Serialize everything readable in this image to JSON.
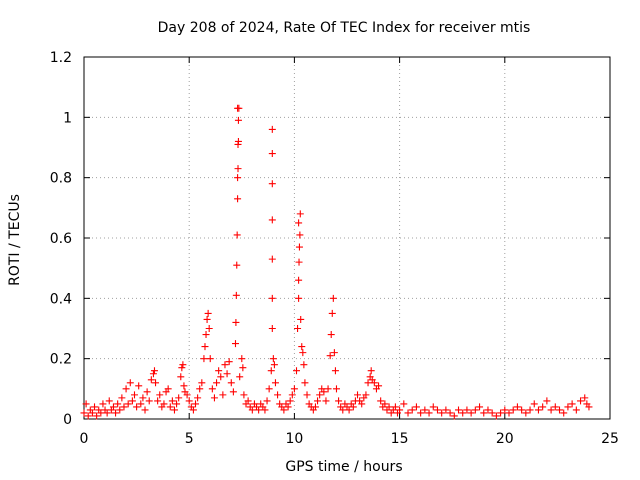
{
  "chart_data": {
    "type": "scatter",
    "title": "Day 208 of 2024, Rate Of TEC Index for receiver mtis",
    "xlabel": "GPS time / hours",
    "ylabel": "ROTI / TECUs",
    "xlim": [
      0,
      25
    ],
    "ylim": [
      0,
      1.2
    ],
    "x_ticks": [
      0,
      5,
      10,
      15,
      20,
      25
    ],
    "x_tick_labels": [
      "0",
      "5",
      "10",
      "15",
      "20",
      "25"
    ],
    "y_ticks": [
      0,
      0.2,
      0.4,
      0.6,
      0.8,
      1.0,
      1.2
    ],
    "y_tick_labels": [
      "0",
      "0.2",
      "0.4",
      "0.6",
      "0.8",
      "1",
      "1.2"
    ],
    "grid": true,
    "marker": "+",
    "color": "#ff0000",
    "series": [
      {
        "name": "ROTI",
        "points": [
          [
            0.0,
            0.02
          ],
          [
            0.1,
            0.05
          ],
          [
            0.2,
            0.01
          ],
          [
            0.3,
            0.03
          ],
          [
            0.4,
            0.02
          ],
          [
            0.5,
            0.04
          ],
          [
            0.6,
            0.01
          ],
          [
            0.7,
            0.03
          ],
          [
            0.8,
            0.02
          ],
          [
            0.9,
            0.05
          ],
          [
            1.0,
            0.03
          ],
          [
            1.1,
            0.02
          ],
          [
            1.2,
            0.06
          ],
          [
            1.3,
            0.03
          ],
          [
            1.4,
            0.04
          ],
          [
            1.5,
            0.02
          ],
          [
            1.6,
            0.05
          ],
          [
            1.7,
            0.03
          ],
          [
            1.8,
            0.07
          ],
          [
            1.9,
            0.04
          ],
          [
            2.0,
            0.1
          ],
          [
            2.1,
            0.05
          ],
          [
            2.2,
            0.12
          ],
          [
            2.3,
            0.06
          ],
          [
            2.4,
            0.08
          ],
          [
            2.5,
            0.04
          ],
          [
            2.6,
            0.11
          ],
          [
            2.7,
            0.05
          ],
          [
            2.8,
            0.07
          ],
          [
            2.9,
            0.03
          ],
          [
            3.0,
            0.09
          ],
          [
            3.1,
            0.06
          ],
          [
            3.2,
            0.13
          ],
          [
            3.3,
            0.15
          ],
          [
            3.35,
            0.16
          ],
          [
            3.4,
            0.12
          ],
          [
            3.5,
            0.06
          ],
          [
            3.6,
            0.08
          ],
          [
            3.7,
            0.04
          ],
          [
            3.8,
            0.05
          ],
          [
            3.9,
            0.09
          ],
          [
            4.0,
            0.1
          ],
          [
            4.1,
            0.04
          ],
          [
            4.2,
            0.06
          ],
          [
            4.3,
            0.03
          ],
          [
            4.4,
            0.05
          ],
          [
            4.5,
            0.07
          ],
          [
            4.6,
            0.14
          ],
          [
            4.65,
            0.17
          ],
          [
            4.7,
            0.18
          ],
          [
            4.75,
            0.11
          ],
          [
            4.8,
            0.09
          ],
          [
            4.9,
            0.08
          ],
          [
            5.0,
            0.06
          ],
          [
            5.1,
            0.04
          ],
          [
            5.2,
            0.03
          ],
          [
            5.3,
            0.05
          ],
          [
            5.4,
            0.07
          ],
          [
            5.5,
            0.1
          ],
          [
            5.6,
            0.12
          ],
          [
            5.7,
            0.2
          ],
          [
            5.75,
            0.24
          ],
          [
            5.8,
            0.28
          ],
          [
            5.85,
            0.33
          ],
          [
            5.9,
            0.35
          ],
          [
            5.95,
            0.3
          ],
          [
            6.0,
            0.2
          ],
          [
            6.1,
            0.1
          ],
          [
            6.2,
            0.07
          ],
          [
            6.3,
            0.12
          ],
          [
            6.4,
            0.16
          ],
          [
            6.5,
            0.14
          ],
          [
            6.6,
            0.08
          ],
          [
            6.7,
            0.18
          ],
          [
            6.8,
            0.15
          ],
          [
            6.9,
            0.19
          ],
          [
            7.0,
            0.12
          ],
          [
            7.1,
            0.09
          ],
          [
            7.2,
            0.25
          ],
          [
            7.22,
            0.32
          ],
          [
            7.24,
            0.41
          ],
          [
            7.26,
            0.51
          ],
          [
            7.28,
            0.61
          ],
          [
            7.3,
            0.73
          ],
          [
            7.3,
            0.8
          ],
          [
            7.32,
            0.83
          ],
          [
            7.32,
            0.91
          ],
          [
            7.34,
            0.92
          ],
          [
            7.34,
            0.99
          ],
          [
            7.36,
            1.03
          ],
          [
            7.3,
            1.03
          ],
          [
            7.4,
            0.14
          ],
          [
            7.5,
            0.2
          ],
          [
            7.55,
            0.17
          ],
          [
            7.6,
            0.08
          ],
          [
            7.7,
            0.05
          ],
          [
            7.8,
            0.06
          ],
          [
            7.9,
            0.04
          ],
          [
            8.0,
            0.03
          ],
          [
            8.1,
            0.05
          ],
          [
            8.2,
            0.04
          ],
          [
            8.3,
            0.03
          ],
          [
            8.4,
            0.05
          ],
          [
            8.5,
            0.04
          ],
          [
            8.6,
            0.03
          ],
          [
            8.7,
            0.06
          ],
          [
            8.8,
            0.1
          ],
          [
            8.9,
            0.16
          ],
          [
            8.95,
            0.3
          ],
          [
            8.95,
            0.4
          ],
          [
            8.95,
            0.53
          ],
          [
            8.95,
            0.66
          ],
          [
            8.95,
            0.78
          ],
          [
            8.95,
            0.88
          ],
          [
            8.95,
            0.96
          ],
          [
            9.0,
            0.2
          ],
          [
            9.05,
            0.18
          ],
          [
            9.1,
            0.12
          ],
          [
            9.2,
            0.08
          ],
          [
            9.3,
            0.05
          ],
          [
            9.4,
            0.04
          ],
          [
            9.5,
            0.03
          ],
          [
            9.6,
            0.05
          ],
          [
            9.7,
            0.04
          ],
          [
            9.8,
            0.06
          ],
          [
            9.9,
            0.08
          ],
          [
            10.0,
            0.1
          ],
          [
            10.1,
            0.16
          ],
          [
            10.15,
            0.3
          ],
          [
            10.2,
            0.4
          ],
          [
            10.2,
            0.46
          ],
          [
            10.22,
            0.52
          ],
          [
            10.24,
            0.57
          ],
          [
            10.26,
            0.61
          ],
          [
            10.2,
            0.65
          ],
          [
            10.28,
            0.68
          ],
          [
            10.3,
            0.33
          ],
          [
            10.35,
            0.24
          ],
          [
            10.4,
            0.22
          ],
          [
            10.45,
            0.18
          ],
          [
            10.5,
            0.12
          ],
          [
            10.6,
            0.08
          ],
          [
            10.7,
            0.05
          ],
          [
            10.8,
            0.04
          ],
          [
            10.9,
            0.03
          ],
          [
            11.0,
            0.04
          ],
          [
            11.1,
            0.06
          ],
          [
            11.2,
            0.08
          ],
          [
            11.3,
            0.1
          ],
          [
            11.4,
            0.09
          ],
          [
            11.5,
            0.06
          ],
          [
            11.6,
            0.1
          ],
          [
            11.7,
            0.21
          ],
          [
            11.75,
            0.28
          ],
          [
            11.8,
            0.35
          ],
          [
            11.85,
            0.4
          ],
          [
            11.9,
            0.22
          ],
          [
            11.95,
            0.16
          ],
          [
            12.0,
            0.1
          ],
          [
            12.1,
            0.06
          ],
          [
            12.2,
            0.04
          ],
          [
            12.3,
            0.03
          ],
          [
            12.4,
            0.05
          ],
          [
            12.5,
            0.04
          ],
          [
            12.6,
            0.03
          ],
          [
            12.7,
            0.05
          ],
          [
            12.8,
            0.04
          ],
          [
            12.9,
            0.06
          ],
          [
            13.0,
            0.08
          ],
          [
            13.1,
            0.06
          ],
          [
            13.2,
            0.05
          ],
          [
            13.3,
            0.07
          ],
          [
            13.4,
            0.08
          ],
          [
            13.5,
            0.12
          ],
          [
            13.6,
            0.14
          ],
          [
            13.65,
            0.16
          ],
          [
            13.7,
            0.13
          ],
          [
            13.8,
            0.12
          ],
          [
            13.9,
            0.1
          ],
          [
            14.0,
            0.11
          ],
          [
            14.1,
            0.06
          ],
          [
            14.2,
            0.04
          ],
          [
            14.3,
            0.05
          ],
          [
            14.4,
            0.03
          ],
          [
            14.5,
            0.04
          ],
          [
            14.6,
            0.02
          ],
          [
            14.7,
            0.03
          ],
          [
            14.8,
            0.04
          ],
          [
            14.9,
            0.02
          ],
          [
            15.0,
            0.03
          ],
          [
            15.2,
            0.05
          ],
          [
            15.4,
            0.02
          ],
          [
            15.6,
            0.03
          ],
          [
            15.8,
            0.04
          ],
          [
            16.0,
            0.02
          ],
          [
            16.2,
            0.03
          ],
          [
            16.4,
            0.02
          ],
          [
            16.6,
            0.04
          ],
          [
            16.8,
            0.03
          ],
          [
            17.0,
            0.02
          ],
          [
            17.2,
            0.03
          ],
          [
            17.4,
            0.02
          ],
          [
            17.6,
            0.01
          ],
          [
            17.8,
            0.03
          ],
          [
            18.0,
            0.02
          ],
          [
            18.2,
            0.03
          ],
          [
            18.4,
            0.02
          ],
          [
            18.6,
            0.03
          ],
          [
            18.8,
            0.04
          ],
          [
            19.0,
            0.02
          ],
          [
            19.2,
            0.03
          ],
          [
            19.4,
            0.02
          ],
          [
            19.6,
            0.01
          ],
          [
            19.8,
            0.02
          ],
          [
            20.0,
            0.03
          ],
          [
            20.2,
            0.02
          ],
          [
            20.4,
            0.03
          ],
          [
            20.6,
            0.04
          ],
          [
            20.8,
            0.03
          ],
          [
            21.0,
            0.02
          ],
          [
            21.2,
            0.03
          ],
          [
            21.4,
            0.05
          ],
          [
            21.6,
            0.03
          ],
          [
            21.8,
            0.04
          ],
          [
            22.0,
            0.06
          ],
          [
            22.2,
            0.03
          ],
          [
            22.4,
            0.04
          ],
          [
            22.6,
            0.03
          ],
          [
            22.8,
            0.02
          ],
          [
            23.0,
            0.04
          ],
          [
            23.2,
            0.05
          ],
          [
            23.4,
            0.03
          ],
          [
            23.6,
            0.06
          ],
          [
            23.8,
            0.07
          ],
          [
            23.9,
            0.05
          ],
          [
            24.0,
            0.04
          ]
        ]
      }
    ]
  }
}
